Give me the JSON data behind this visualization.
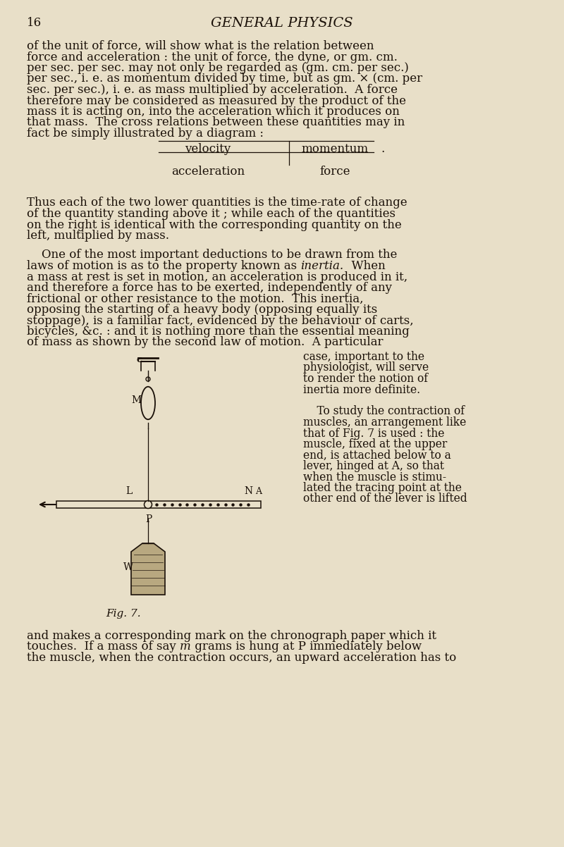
{
  "background_color": "#e8dfc8",
  "page_number": "16",
  "header": "GENERAL PHYSICS",
  "text_color": "#1a1008",
  "diag_row1_left": "velocity",
  "diag_row1_right": "momentum",
  "diag_row2_left": "acceleration",
  "diag_row2_right": "force",
  "fig_caption": "Fig. 7.",
  "font_family": "serif",
  "para1_lines": [
    "of the unit of force, will show what is the relation between",
    "force and acceleration : the unit of force, the dyne, or gm. cm.",
    "per sec. per sec. may not only be regarded as (gm. cm. per sec.)",
    "per sec., i. e. as momentum divided by time, but as gm. × (cm. per",
    "sec. per sec.), i. e. as mass multiplied by acceleration.  A force",
    "therefore may be considered as measured by the product of the",
    "mass it is acting on, into the acceleration which it produces on",
    "that mass.  The cross relations between these quantities may in",
    "fact be simply illustrated by a diagram :"
  ],
  "para2_lines": [
    "Thus each of the two lower quantities is the time-rate of change",
    "of the quantity standing above it ; while each of the quantities",
    "on the right is identical with the corresponding quantity on the",
    "left, multiplied by mass."
  ],
  "para3_lines": [
    "    One of the most important deductions to be drawn from the",
    "laws of motion is as to the property known as |inertia.|  When",
    "a mass at rest is set in motion, an acceleration is produced in it,",
    "and therefore a force has to be exerted, independently of any",
    "frictional or other resistance to the motion.  This inertia,",
    "opposing the starting of a heavy body (opposing equally its",
    "stoppage), is a familiar fact, evidenced by the behaviour of carts,",
    "bicycles, &c. : and it is nothing more than the essential meaning",
    "of mass as shown by the second law of motion.  A particular"
  ],
  "right_col_lines": [
    "case, important to the",
    "physiologist, will serve",
    "to render the notion of",
    "inertia more definite.",
    "",
    "    To study the contraction of",
    "muscles, an arrangement like",
    "that of Fig. 7 is used : the",
    "muscle, fixed at the upper",
    "end, is attached below to a",
    "lever, hinged at A, so that",
    "when the muscle is stimu-",
    "lated the tracing point at the",
    "other end of the lever is lifted"
  ],
  "para4_lines": [
    "and makes a corresponding mark on the chronograph paper which it",
    "touches.  If a mass of say |m| grams is hung at P immediately below",
    "the muscle, when the contraction occurs, an upward acceleration has to"
  ]
}
